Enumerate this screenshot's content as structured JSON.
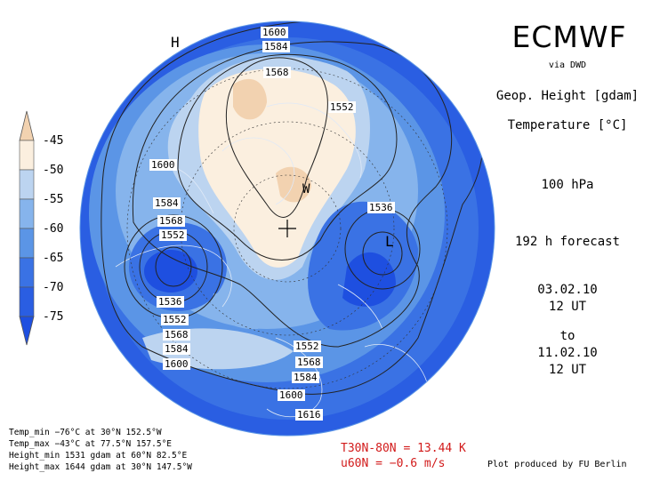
{
  "header": {
    "title": "ECMWF",
    "source": "via DWD",
    "var1": "Geop. Height [gdam]",
    "var2": "Temperature [°C]",
    "level": "100 hPa",
    "forecast": "192 h forecast",
    "init_date": "03.02.10",
    "init_time": "12 UT",
    "to_label": "to",
    "valid_date": "11.02.10",
    "valid_time": "12 UT"
  },
  "colorbar": {
    "labels": [
      "-45",
      "-50",
      "-55",
      "-60",
      "-65",
      "-70",
      "-75"
    ],
    "colors": [
      "#f2d2b0",
      "#fbefdf",
      "#bcd4f0",
      "#86b4ec",
      "#5b95e6",
      "#3a72e4",
      "#1e4fe0"
    ]
  },
  "stats": {
    "temp_min": "Temp_min −76°C at 30°N 152.5°W",
    "temp_max": "Temp_max −43°C at 77.5°N 157.5°E",
    "height_min": "Height_min 1531 gdam at 60°N 82.5°E",
    "height_max": "Height_max 1644 gdam at 30°N 147.5°W"
  },
  "indices": {
    "t_line": "T30N-80N = 13.44 K",
    "u_line": "u60N = −0.6 m/s"
  },
  "credit": "Plot produced by FU Berlin",
  "map_labels": {
    "contours": [
      "1600",
      "1584",
      "1568",
      "1552",
      "1600",
      "1584",
      "1568",
      "1552",
      "1536",
      "1552",
      "1568",
      "1584",
      "1600",
      "1536",
      "1552",
      "1568",
      "1584",
      "1600",
      "1616"
    ],
    "H": "H",
    "L": "L",
    "W": "W"
  }
}
